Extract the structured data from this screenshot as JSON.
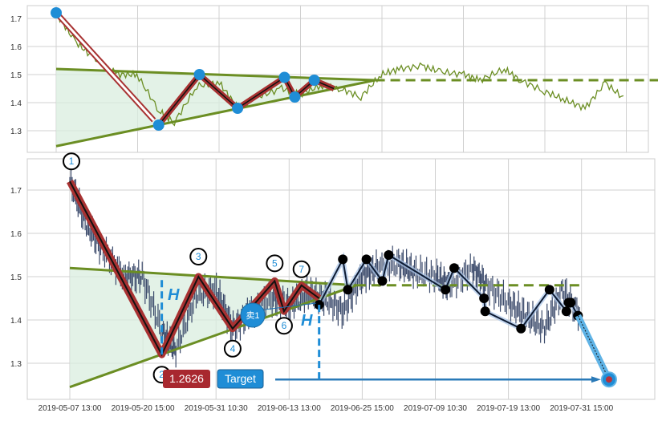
{
  "chart_data": [
    {
      "type": "line",
      "panel": "top",
      "ylim": [
        1.22,
        1.75
      ],
      "yticks": [
        "1.3",
        "1.4",
        "1.5",
        "1.6",
        "1.7"
      ],
      "grid": true,
      "colors": {
        "price": "#6b8e23",
        "trend": "#6b8e23",
        "fill": "#d9eedf",
        "zigzag": "#a83232",
        "pivot": "#1f8dd6"
      }
    },
    {
      "type": "line",
      "panel": "bottom",
      "ylim": [
        1.21,
        1.78
      ],
      "yticks": [
        "1.3",
        "1.4",
        "1.5",
        "1.6",
        "1.7"
      ],
      "xticks": [
        "2019-05-07 13:00",
        "2019-05-20 15:00",
        "2019-05-31 10:30",
        "2019-06-13 13:00",
        "2019-06-25 15:00",
        "2019-07-09 10:30",
        "2019-07-19 13:00",
        "2019-07-31 15:00"
      ],
      "grid": true,
      "colors": {
        "candles": "#3b4a6b",
        "trend": "#6b8e23",
        "fill": "#d9eedf",
        "zigzag": "#a83232",
        "label": "#1f8dd6",
        "target": "#2a7ab8",
        "badge_price": "#a8282f",
        "badge_target": "#1f8dd6"
      }
    }
  ],
  "series": {
    "x": [
      "2019-05-07 13:00",
      "2019-05-10",
      "2019-05-13",
      "2019-05-17",
      "2019-05-20",
      "2019-05-23",
      "2019-05-25",
      "2019-05-28",
      "2019-05-31",
      "2019-06-03",
      "2019-06-06",
      "2019-06-10",
      "2019-06-13",
      "2019-06-16",
      "2019-06-19",
      "2019-06-22",
      "2019-06-25",
      "2019-06-28",
      "2019-07-02",
      "2019-07-05",
      "2019-07-09",
      "2019-07-11",
      "2019-07-14",
      "2019-07-16",
      "2019-07-19",
      "2019-07-22",
      "2019-07-25",
      "2019-07-28",
      "2019-07-31"
    ],
    "close": [
      1.72,
      1.62,
      1.56,
      1.5,
      1.5,
      1.37,
      1.33,
      1.46,
      1.47,
      1.38,
      1.42,
      1.45,
      1.43,
      1.46,
      1.45,
      1.42,
      1.5,
      1.52,
      1.53,
      1.51,
      1.5,
      1.48,
      1.52,
      1.48,
      1.44,
      1.41,
      1.38,
      1.47,
      1.41
    ]
  },
  "pattern": {
    "points": [
      {
        "label": "1",
        "x": "2019-05-07 13:00",
        "y": 1.72
      },
      {
        "label": "2",
        "x": "2019-05-23 10:00",
        "y": 1.32
      },
      {
        "label": "3",
        "x": "2019-05-28 20:00",
        "y": 1.5
      },
      {
        "label": "4",
        "x": "2019-06-03 10:00",
        "y": 1.38
      },
      {
        "label": "5",
        "x": "2019-06-10 23:00",
        "y": 1.49
      },
      {
        "label": "6",
        "x": "2019-06-12 15:00",
        "y": 1.42
      },
      {
        "label": "7",
        "x": "2019-06-15 14:00",
        "y": 1.48
      }
    ],
    "end": {
      "x": "2019-06-18 12:00",
      "y": 1.45
    },
    "upper_line": [
      {
        "x": "2019-05-07 13:00",
        "y": 1.52
      },
      {
        "x": "2019-06-24 15:00",
        "y": 1.48
      }
    ],
    "lower_line": [
      {
        "x": "2019-05-07 13:00",
        "y": 1.245
      },
      {
        "x": "2019-06-24 15:00",
        "y": 1.48
      }
    ],
    "breakout_level": {
      "from": "2019-06-24 15:00",
      "to": "2019-07-31 15:00",
      "y": 1.48
    },
    "height_marker": "H",
    "sell_label": "卖1"
  },
  "zigzag_after": [
    {
      "x": "2019-06-18 12:00",
      "y": 1.435
    },
    {
      "x": "2019-06-22 10:00",
      "y": 1.54
    },
    {
      "x": "2019-06-23 06:00",
      "y": 1.47
    },
    {
      "x": "2019-06-26 10:00",
      "y": 1.54
    },
    {
      "x": "2019-06-29 10:00",
      "y": 1.49
    },
    {
      "x": "2019-06-30 15:00",
      "y": 1.55
    },
    {
      "x": "2019-07-10 20:00",
      "y": 1.47
    },
    {
      "x": "2019-07-12 01:00",
      "y": 1.52
    },
    {
      "x": "2019-07-16 04:00",
      "y": 1.45
    },
    {
      "x": "2019-07-16 08:00",
      "y": 1.42
    },
    {
      "x": "2019-07-21 15:00",
      "y": 1.38
    },
    {
      "x": "2019-07-26 08:00",
      "y": 1.47
    },
    {
      "x": "2019-07-29 03:00",
      "y": 1.42
    },
    {
      "x": "2019-07-29 12:00",
      "y": 1.44
    },
    {
      "x": "2019-07-29 20:00",
      "y": 1.44
    },
    {
      "x": "2019-07-31 01:00",
      "y": 1.41
    }
  ],
  "target": {
    "price_label": "1.2626",
    "label": "Target",
    "x": "2019-08-05 04:00",
    "y": 1.2626
  }
}
